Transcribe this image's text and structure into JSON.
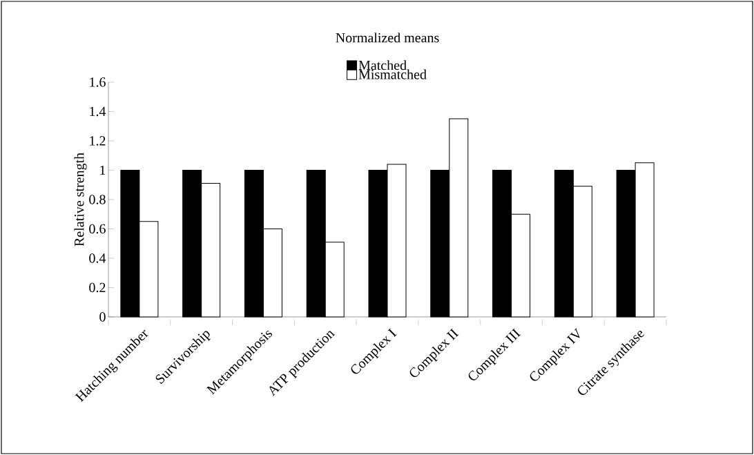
{
  "chart_data": {
    "type": "bar",
    "title": "Normalized means",
    "ylabel": "Relative strength",
    "categories": [
      "Hatching number",
      "Survivorship",
      "Metamorphosis",
      "ATP production",
      "Complex I",
      "Complex II",
      "Complex III",
      "Complex IV",
      "Citrate synthase"
    ],
    "series": [
      {
        "name": "Matched",
        "color": "#000000",
        "values": [
          1,
          1,
          1,
          1,
          1,
          1,
          1,
          1,
          1
        ]
      },
      {
        "name": "Mismatched",
        "color": "#ffffff",
        "values": [
          0.65,
          0.91,
          0.6,
          0.51,
          1.04,
          1.35,
          0.7,
          0.89,
          1.05
        ]
      }
    ],
    "ylim": [
      0,
      1.6
    ],
    "yticks": [
      0,
      0.2,
      0.4,
      0.6,
      0.8,
      1,
      1.2,
      1.4,
      1.6
    ],
    "legend": "top",
    "grid": false
  }
}
